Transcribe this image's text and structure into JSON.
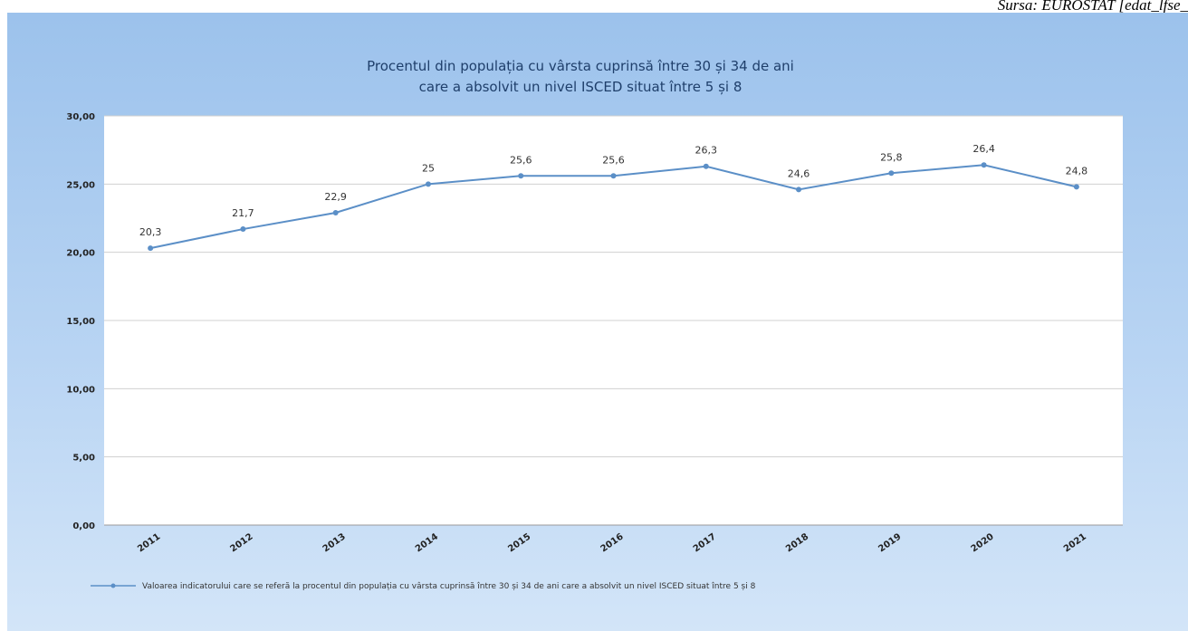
{
  "source": "Sursa: EUROSTAT [edat_lfse_",
  "chart_data": {
    "type": "line",
    "title": [
      "Procentul din populația cu vârsta cuprinsă între 30 și 34 de ani",
      "care a absolvit un nivel ISCED situat între 5 și 8"
    ],
    "categories": [
      "2011",
      "2012",
      "2013",
      "2014",
      "2015",
      "2016",
      "2017",
      "2018",
      "2019",
      "2020",
      "2021"
    ],
    "series": [
      {
        "name": "Valoarea indicatorului care se referă la procentul din populația cu vârsta cuprinsă între 30 și 34 de ani care a absolvit un nivel ISCED situat între 5 și 8",
        "values": [
          20.3,
          21.7,
          22.9,
          25,
          25.6,
          25.6,
          26.3,
          24.6,
          25.8,
          26.4,
          24.8
        ],
        "data_labels": [
          "20,3",
          "21,7",
          "22,9",
          "25",
          "25,6",
          "25,6",
          "26,3",
          "24,6",
          "25,8",
          "26,4",
          "24,8"
        ],
        "color": "#5b8fc7"
      }
    ],
    "yticks": [
      "0,00",
      "5,00",
      "10,00",
      "15,00",
      "20,00",
      "25,00",
      "30,00"
    ],
    "ytick_values": [
      0,
      5,
      10,
      15,
      20,
      25,
      30
    ],
    "ylim": [
      0,
      30
    ],
    "grid": true,
    "legend_position": "bottom"
  }
}
